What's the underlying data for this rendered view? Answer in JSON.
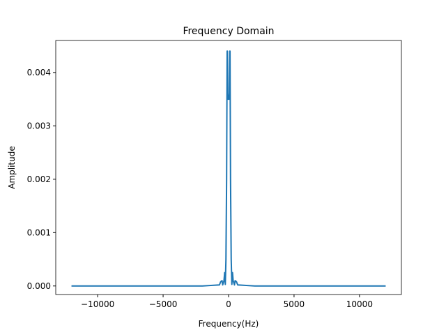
{
  "chart_data": {
    "type": "line",
    "title": "Frequency Domain",
    "x_label": "Frequency(Hz)",
    "y_label": "Amplitude",
    "series": [
      {
        "color": "#1f77b4",
        "x": [
          -12000,
          -2000,
          -700,
          -600,
          -500,
          -450,
          -350,
          -300,
          -250,
          -200,
          -150,
          -110,
          -90,
          -60,
          -30,
          0,
          30,
          60,
          90,
          110,
          150,
          200,
          250,
          300,
          350,
          450,
          500,
          600,
          700,
          2000,
          12000
        ],
        "values": [
          0,
          0,
          2e-05,
          8e-05,
          0.0001,
          2e-05,
          0.0001,
          0.00025,
          3e-05,
          0.0005,
          0.002,
          0.0044,
          0.0044,
          0.0036,
          0.0035,
          0.0035,
          0.0035,
          0.0036,
          0.0044,
          0.0044,
          0.002,
          0.0005,
          3e-05,
          0.00025,
          0.0001,
          2e-05,
          0.0001,
          8e-05,
          2e-05,
          0,
          0
        ]
      }
    ],
    "xlim": [
      -13200,
      13200
    ],
    "ylim": [
      -0.00016,
      0.0046
    ],
    "xticks": [
      {
        "value": -10000,
        "label": "−10000"
      },
      {
        "value": -5000,
        "label": "−5000"
      },
      0,
      5000,
      10000
    ],
    "yticks": [
      {
        "value": 0,
        "label": "0.000"
      },
      {
        "value": 0.001,
        "label": "0.001"
      },
      {
        "value": 0.002,
        "label": "0.002"
      },
      {
        "value": 0.003,
        "label": "0.003"
      },
      {
        "value": 0.004,
        "label": "0.004"
      }
    ]
  }
}
